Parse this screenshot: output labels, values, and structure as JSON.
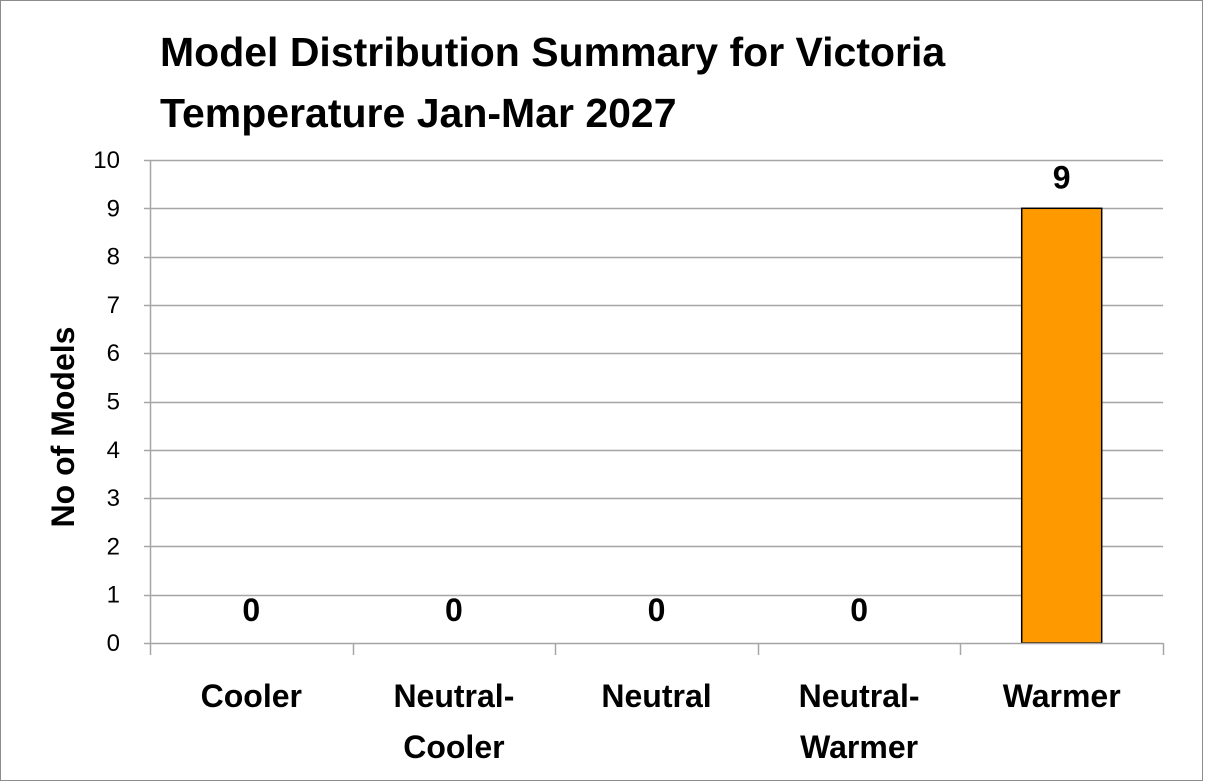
{
  "chart_data": {
    "type": "bar",
    "title_lines": [
      "Model Distribution Summary for Victoria",
      "Temperature Jan-Mar 2027"
    ],
    "ylabel": "No of Models",
    "xlabel": "",
    "ylim": [
      0,
      10
    ],
    "yticks": [
      0,
      1,
      2,
      3,
      4,
      5,
      6,
      7,
      8,
      9,
      10
    ],
    "grid": true,
    "legend": "none",
    "categories": [
      [
        "Cooler"
      ],
      [
        "Neutral-",
        "Cooler"
      ],
      [
        "Neutral"
      ],
      [
        "Neutral-",
        "Warmer"
      ],
      [
        "Warmer"
      ]
    ],
    "values": [
      0,
      0,
      0,
      0,
      9
    ],
    "data_labels": [
      "0",
      "0",
      "0",
      "0",
      "9"
    ],
    "bar_color": "#FF9900",
    "bar_border_color": "#000000",
    "grid_color": "#a6a6a6"
  }
}
